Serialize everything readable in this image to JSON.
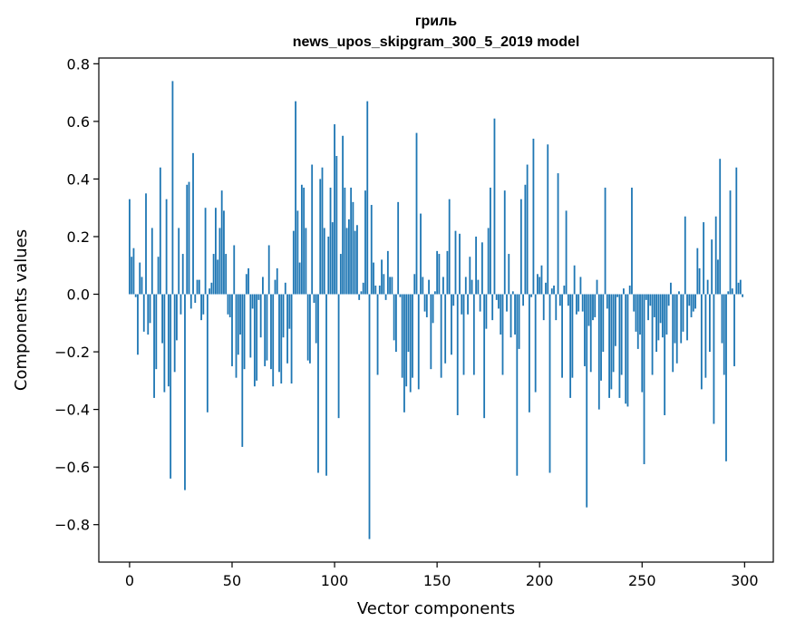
{
  "chart_data": {
    "type": "bar",
    "title_line1": "гриль",
    "title_line2": "news_upos_skipgram_300_5_2019 model",
    "xlabel": "Vector components",
    "ylabel": "Components values",
    "xlim": [
      -15,
      314
    ],
    "ylim": [
      -0.93,
      0.82
    ],
    "xticks": [
      0,
      50,
      100,
      150,
      200,
      250,
      300
    ],
    "xtick_labels": [
      "0",
      "50",
      "100",
      "150",
      "200",
      "250",
      "300"
    ],
    "yticks": [
      -0.8,
      -0.6,
      -0.4,
      -0.2,
      0.0,
      0.2,
      0.4,
      0.6,
      0.8
    ],
    "ytick_labels": [
      "−0.8",
      "−0.6",
      "−0.4",
      "−0.2",
      "0.0",
      "0.2",
      "0.4",
      "0.6",
      "0.8"
    ],
    "bar_color": "#1f77b4",
    "grid": false,
    "x": [
      0,
      1,
      2,
      3,
      4,
      5,
      6,
      7,
      8,
      9,
      10,
      11,
      12,
      13,
      14,
      15,
      16,
      17,
      18,
      19,
      20,
      21,
      22,
      23,
      24,
      25,
      26,
      27,
      28,
      29,
      30,
      31,
      32,
      33,
      34,
      35,
      36,
      37,
      38,
      39,
      40,
      41,
      42,
      43,
      44,
      45,
      46,
      47,
      48,
      49,
      50,
      51,
      52,
      53,
      54,
      55,
      56,
      57,
      58,
      59,
      60,
      61,
      62,
      63,
      64,
      65,
      66,
      67,
      68,
      69,
      70,
      71,
      72,
      73,
      74,
      75,
      76,
      77,
      78,
      79,
      80,
      81,
      82,
      83,
      84,
      85,
      86,
      87,
      88,
      89,
      90,
      91,
      92,
      93,
      94,
      95,
      96,
      97,
      98,
      99,
      100,
      101,
      102,
      103,
      104,
      105,
      106,
      107,
      108,
      109,
      110,
      111,
      112,
      113,
      114,
      115,
      116,
      117,
      118,
      119,
      120,
      121,
      122,
      123,
      124,
      125,
      126,
      127,
      128,
      129,
      130,
      131,
      132,
      133,
      134,
      135,
      136,
      137,
      138,
      139,
      140,
      141,
      142,
      143,
      144,
      145,
      146,
      147,
      148,
      149,
      150,
      151,
      152,
      153,
      154,
      155,
      156,
      157,
      158,
      159,
      160,
      161,
      162,
      163,
      164,
      165,
      166,
      167,
      168,
      169,
      170,
      171,
      172,
      173,
      174,
      175,
      176,
      177,
      178,
      179,
      180,
      181,
      182,
      183,
      184,
      185,
      186,
      187,
      188,
      189,
      190,
      191,
      192,
      193,
      194,
      195,
      196,
      197,
      198,
      199,
      200,
      201,
      202,
      203,
      204,
      205,
      206,
      207,
      208,
      209,
      210,
      211,
      212,
      213,
      214,
      215,
      216,
      217,
      218,
      219,
      220,
      221,
      222,
      223,
      224,
      225,
      226,
      227,
      228,
      229,
      230,
      231,
      232,
      233,
      234,
      235,
      236,
      237,
      238,
      239,
      240,
      241,
      242,
      243,
      244,
      245,
      246,
      247,
      248,
      249,
      250,
      251,
      252,
      253,
      254,
      255,
      256,
      257,
      258,
      259,
      260,
      261,
      262,
      263,
      264,
      265,
      266,
      267,
      268,
      269,
      270,
      271,
      272,
      273,
      274,
      275,
      276,
      277,
      278,
      279,
      280,
      281,
      282,
      283,
      284,
      285,
      286,
      287,
      288,
      289,
      290,
      291,
      292,
      293,
      294,
      295,
      296,
      297,
      298,
      299
    ],
    "values": [
      0.33,
      0.13,
      0.16,
      -0.01,
      -0.21,
      0.11,
      0.06,
      -0.13,
      0.35,
      -0.14,
      -0.1,
      0.23,
      -0.36,
      -0.26,
      0.13,
      0.44,
      -0.17,
      -0.34,
      0.33,
      -0.32,
      -0.64,
      0.74,
      -0.27,
      -0.16,
      0.23,
      -0.07,
      0.14,
      -0.68,
      0.38,
      0.39,
      -0.05,
      0.49,
      -0.03,
      0.05,
      0.05,
      -0.09,
      -0.07,
      0.3,
      -0.41,
      0.02,
      0.04,
      0.14,
      0.3,
      0.12,
      0.23,
      0.36,
      0.29,
      0.14,
      -0.07,
      -0.08,
      -0.25,
      0.17,
      -0.29,
      -0.21,
      -0.14,
      -0.53,
      -0.26,
      0.07,
      0.09,
      -0.22,
      -0.05,
      -0.32,
      -0.3,
      -0.02,
      -0.15,
      0.06,
      -0.25,
      -0.23,
      0.17,
      -0.26,
      -0.32,
      0.05,
      0.09,
      -0.27,
      -0.31,
      -0.15,
      0.04,
      -0.24,
      -0.12,
      -0.31,
      0.22,
      0.67,
      0.29,
      0.11,
      0.38,
      0.37,
      0.23,
      -0.23,
      -0.24,
      0.45,
      -0.03,
      -0.17,
      -0.62,
      0.4,
      0.44,
      0.23,
      -0.63,
      0.2,
      0.37,
      0.25,
      0.59,
      0.48,
      -0.43,
      0.14,
      0.55,
      0.37,
      0.23,
      0.26,
      0.37,
      0.32,
      0.22,
      0.24,
      -0.02,
      0.01,
      0.04,
      0.36,
      0.67,
      -0.85,
      0.31,
      0.11,
      0.03,
      -0.28,
      0.03,
      0.12,
      0.07,
      -0.02,
      0.15,
      0.06,
      0.06,
      -0.16,
      -0.2,
      0.32,
      -0.01,
      -0.29,
      -0.41,
      -0.32,
      -0.2,
      -0.34,
      -0.29,
      0.07,
      0.56,
      -0.33,
      0.28,
      0.06,
      -0.06,
      -0.08,
      0.05,
      -0.26,
      -0.1,
      0.01,
      0.15,
      0.14,
      -0.29,
      0.06,
      -0.24,
      0.15,
      0.33,
      -0.21,
      -0.04,
      0.22,
      -0.42,
      0.21,
      -0.07,
      -0.28,
      0.06,
      -0.07,
      0.13,
      0.05,
      -0.28,
      0.2,
      0.05,
      -0.06,
      0.18,
      -0.43,
      -0.12,
      0.23,
      0.37,
      -0.09,
      0.61,
      -0.02,
      -0.05,
      -0.14,
      -0.28,
      0.36,
      -0.06,
      0.14,
      -0.15,
      0.01,
      -0.14,
      -0.63,
      -0.19,
      0.33,
      -0.04,
      0.38,
      0.45,
      -0.41,
      -0.01,
      0.54,
      -0.34,
      0.07,
      0.06,
      0.1,
      -0.09,
      0.04,
      0.52,
      -0.62,
      0.02,
      0.03,
      -0.09,
      0.42,
      -0.04,
      -0.29,
      0.03,
      0.29,
      -0.04,
      -0.36,
      -0.29,
      0.1,
      -0.07,
      -0.06,
      0.06,
      -0.06,
      -0.25,
      -0.74,
      -0.11,
      -0.27,
      -0.09,
      -0.08,
      0.05,
      -0.4,
      -0.3,
      -0.2,
      0.37,
      -0.05,
      -0.36,
      -0.33,
      -0.27,
      -0.18,
      -0.01,
      -0.36,
      -0.28,
      0.02,
      -0.38,
      -0.39,
      0.03,
      0.37,
      -0.06,
      -0.13,
      -0.19,
      -0.14,
      -0.34,
      -0.59,
      -0.02,
      -0.09,
      -0.04,
      -0.28,
      -0.08,
      -0.2,
      -0.16,
      -0.1,
      -0.15,
      -0.42,
      -0.14,
      -0.04,
      0.04,
      -0.27,
      -0.17,
      -0.24,
      0.01,
      -0.17,
      -0.13,
      0.27,
      -0.16,
      -0.04,
      -0.08,
      -0.06,
      -0.05,
      0.16,
      0.09,
      -0.33,
      0.25,
      -0.29,
      0.05,
      -0.2,
      0.19,
      -0.45,
      0.27,
      0.12,
      0.47,
      -0.17,
      -0.28,
      -0.58,
      0.01,
      0.36,
      0.02,
      -0.25,
      0.44,
      0.04,
      0.05,
      -0.01
    ]
  }
}
